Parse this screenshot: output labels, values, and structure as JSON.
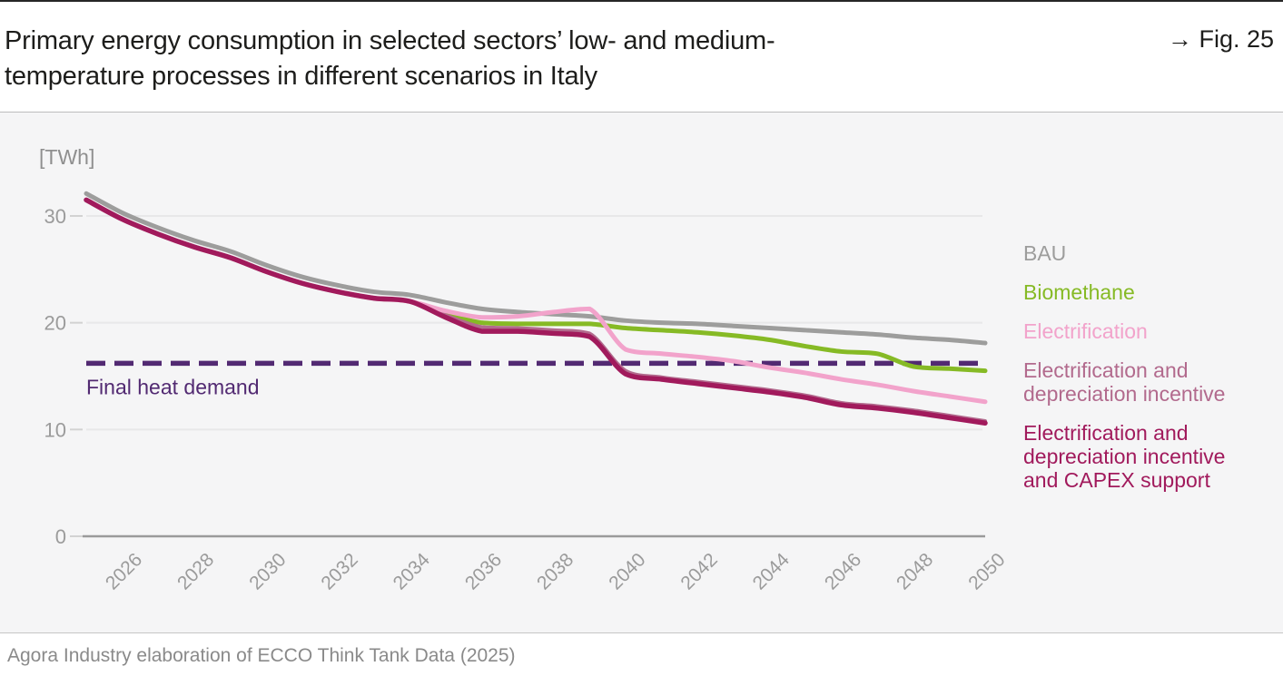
{
  "header": {
    "title_line1": "Primary energy consumption in selected sectors’ low- and medium-",
    "title_line2": "temperature processes in different scenarios in Italy",
    "fig_label": "→ Fig. 25"
  },
  "chart": {
    "unit_label": "[TWh]"
  },
  "legend": {
    "items": [
      {
        "label": "BAU",
        "color": "#9d9d9c"
      },
      {
        "label": "Biomethane",
        "color": "#86ba25"
      },
      {
        "label": "Electrification",
        "color": "#f2a3cb"
      },
      {
        "label": "Electrification and depreciation incentive",
        "color": "#b26a8d"
      },
      {
        "label": "Electrification and depreciation incentive and CAPEX support",
        "color": "#a11a5c"
      }
    ]
  },
  "footer": {
    "source": "Agora Industry elaboration of ECCO Think Tank Data (2025)"
  },
  "chart_data": {
    "type": "line",
    "title": "Primary energy consumption in selected sectors’ low- and medium-temperature processes in different scenarios in Italy",
    "unit": "TWh",
    "ylabel": "[TWh]",
    "xlabel": "",
    "grid": "horizontal",
    "legend_position": "right",
    "xlim": [
      2025,
      2050
    ],
    "ylim": [
      0,
      33.5
    ],
    "xticks": [
      2026,
      2028,
      2030,
      2032,
      2034,
      2036,
      2038,
      2040,
      2042,
      2044,
      2046,
      2048,
      2050
    ],
    "yticks": [
      0,
      10,
      20,
      30
    ],
    "x": [
      2025,
      2026,
      2027,
      2028,
      2029,
      2030,
      2031,
      2032,
      2033,
      2034,
      2035,
      2036,
      2037,
      2038,
      2039,
      2040,
      2041,
      2042,
      2043,
      2044,
      2045,
      2046,
      2047,
      2048,
      2049,
      2050
    ],
    "series": [
      {
        "name": "BAU",
        "color": "#9d9d9c",
        "width": 5,
        "values": [
          32.1,
          30.3,
          28.9,
          27.7,
          26.7,
          25.4,
          24.3,
          23.5,
          22.9,
          22.6,
          21.9,
          21.3,
          21.0,
          20.8,
          20.6,
          20.2,
          20.0,
          19.9,
          19.7,
          19.5,
          19.3,
          19.1,
          18.9,
          18.6,
          18.4,
          18.1
        ]
      },
      {
        "name": "Biomethane",
        "color": "#86ba25",
        "width": 5,
        "values": [
          31.5,
          29.7,
          28.3,
          27.1,
          26.1,
          24.8,
          23.7,
          22.9,
          22.3,
          22.0,
          20.8,
          20.0,
          19.9,
          19.9,
          19.9,
          19.5,
          19.3,
          19.1,
          18.8,
          18.4,
          17.8,
          17.3,
          17.1,
          15.9,
          15.7,
          15.5
        ]
      },
      {
        "name": "Electrification and depreciation incentive",
        "color": "#b26a8d",
        "width": 4,
        "values": [
          31.5,
          29.7,
          28.3,
          27.1,
          26.1,
          24.8,
          23.7,
          22.9,
          22.3,
          22.0,
          20.7,
          19.6,
          19.5,
          19.3,
          19.0,
          15.5,
          14.9,
          14.5,
          14.1,
          13.7,
          13.2,
          12.5,
          12.2,
          11.8,
          11.3,
          10.8
        ]
      },
      {
        "name": "Electrification",
        "color": "#f2a3cb",
        "width": 5,
        "values": [
          31.5,
          29.7,
          28.3,
          27.1,
          26.1,
          24.8,
          23.7,
          22.9,
          22.3,
          22.0,
          21.1,
          20.5,
          20.6,
          21.0,
          21.3,
          17.5,
          17.1,
          16.8,
          16.4,
          15.8,
          15.3,
          14.7,
          14.2,
          13.6,
          13.1,
          12.6
        ]
      },
      {
        "name": "Electrification and depreciation incentive and CAPEX support",
        "color": "#a11a5c",
        "width": 5.5,
        "values": [
          31.5,
          29.7,
          28.3,
          27.1,
          26.1,
          24.8,
          23.7,
          22.9,
          22.3,
          22.0,
          20.5,
          19.2,
          19.2,
          19.0,
          18.7,
          15.2,
          14.7,
          14.3,
          13.9,
          13.5,
          13.0,
          12.3,
          12.0,
          11.6,
          11.1,
          10.6
        ]
      }
    ],
    "reference_line": {
      "label": "Final heat demand",
      "value": 16.2,
      "color": "#522a72",
      "style": "dashed"
    }
  }
}
